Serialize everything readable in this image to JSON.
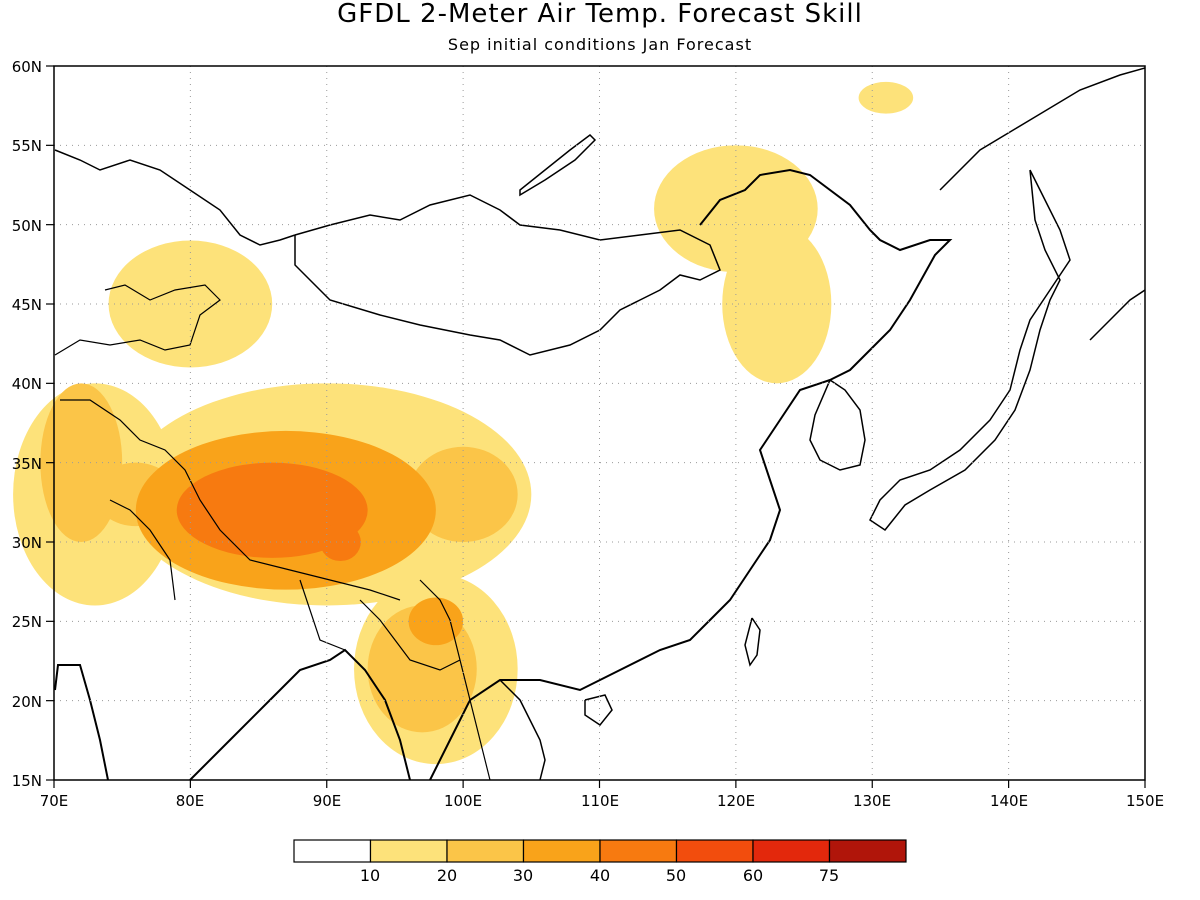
{
  "title": "GFDL 2-Meter Air Temp. Forecast Skill",
  "subtitle": "Sep initial conditions  Jan Forecast",
  "lon_labels": [
    "70E",
    "80E",
    "90E",
    "100E",
    "110E",
    "120E",
    "130E",
    "140E",
    "150E"
  ],
  "lat_labels": [
    "15N",
    "20N",
    "25N",
    "30N",
    "35N",
    "40N",
    "45N",
    "50N",
    "55N",
    "60N"
  ],
  "colorbar": {
    "colors": [
      "#ffffff",
      "#fde27a",
      "#fbc548",
      "#f9a31a",
      "#f77a10",
      "#f24d0d",
      "#e3280c",
      "#b0150a"
    ],
    "labels": [
      "10",
      "20",
      "30",
      "40",
      "50",
      "60",
      "75"
    ]
  },
  "chart_data": {
    "type": "heatmap",
    "title": "GFDL 2-Meter Air Temp. Forecast Skill",
    "subtitle": "Sep initial conditions  Jan Forecast",
    "xlim": [
      70,
      150
    ],
    "ylim": [
      15,
      60
    ],
    "x_ticks": [
      70,
      80,
      90,
      100,
      110,
      120,
      130,
      140,
      150
    ],
    "y_ticks": [
      15,
      20,
      25,
      30,
      35,
      40,
      45,
      50,
      55,
      60
    ],
    "levels": [
      10,
      20,
      30,
      40,
      50,
      60,
      75
    ],
    "grid": true,
    "skill_regions": [
      {
        "lon": 86,
        "lat": 32,
        "rx": 7,
        "ry": 3,
        "level": 4
      },
      {
        "lon": 91,
        "lat": 30,
        "rx": 1.5,
        "ry": 1.2,
        "level": 4
      },
      {
        "lon": 87,
        "lat": 32,
        "rx": 11,
        "ry": 5,
        "level": 3
      },
      {
        "lon": 100,
        "lat": 33,
        "rx": 4,
        "ry": 3,
        "level": 2
      },
      {
        "lon": 90,
        "lat": 33,
        "rx": 15,
        "ry": 7,
        "level": 1
      },
      {
        "lon": 72,
        "lat": 35,
        "rx": 3,
        "ry": 5,
        "level": 2
      },
      {
        "lon": 76,
        "lat": 33,
        "rx": 3,
        "ry": 2,
        "level": 2
      },
      {
        "lon": 73,
        "lat": 33,
        "rx": 6,
        "ry": 7,
        "level": 1
      },
      {
        "lon": 98,
        "lat": 25,
        "rx": 2,
        "ry": 1.5,
        "level": 3
      },
      {
        "lon": 97,
        "lat": 22,
        "rx": 4,
        "ry": 4,
        "level": 2
      },
      {
        "lon": 98,
        "lat": 22,
        "rx": 6,
        "ry": 6,
        "level": 1
      },
      {
        "lon": 120,
        "lat": 51,
        "rx": 6,
        "ry": 4,
        "level": 1
      },
      {
        "lon": 123,
        "lat": 45,
        "rx": 4,
        "ry": 5,
        "level": 1
      },
      {
        "lon": 131,
        "lat": 58,
        "rx": 2,
        "ry": 1,
        "level": 1
      },
      {
        "lon": 80,
        "lat": 45,
        "rx": 6,
        "ry": 4,
        "level": 1
      }
    ]
  }
}
